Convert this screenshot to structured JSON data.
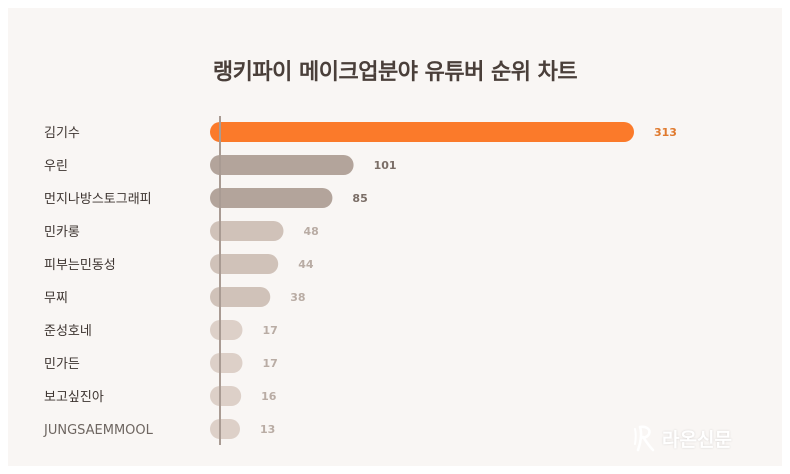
{
  "chart_data": {
    "type": "bar",
    "orientation": "horizontal",
    "title": "랭키파이 메이크업분야 유튜버 순위 차트",
    "categories": [
      "김기수",
      "우린",
      "먼지나방스토그래피",
      "민카롱",
      "피부는민동성",
      "무찌",
      "준성호네",
      "민가든",
      "보고싶진아",
      "JUNGSAEMMOOL"
    ],
    "values": [
      313,
      101,
      85,
      48,
      44,
      38,
      17,
      17,
      16,
      13
    ],
    "xlim": [
      0,
      313
    ],
    "grid": false,
    "legend": "none"
  },
  "colors": {
    "highlight": "#fb7a2a",
    "highlight_label": "#e07a2e",
    "bars": [
      "#fb7a2a",
      "#b3a49b",
      "#b3a49b",
      "#d0c2b9",
      "#d0c2b9",
      "#d0c2b9",
      "#ddd0c8",
      "#ddd0c8",
      "#ddd0c8",
      "#ddd0c8"
    ],
    "value_labels": [
      "#e07a2e",
      "#7b6e67",
      "#7b6e67",
      "#b9aca4",
      "#b9aca4",
      "#b9aca4",
      "#b9aca4",
      "#b9aca4",
      "#b9aca4",
      "#b9aca4"
    ],
    "axis": "#a99b93",
    "category_text": "#3d3430"
  },
  "branding": {
    "logo_text": "라온신문"
  }
}
